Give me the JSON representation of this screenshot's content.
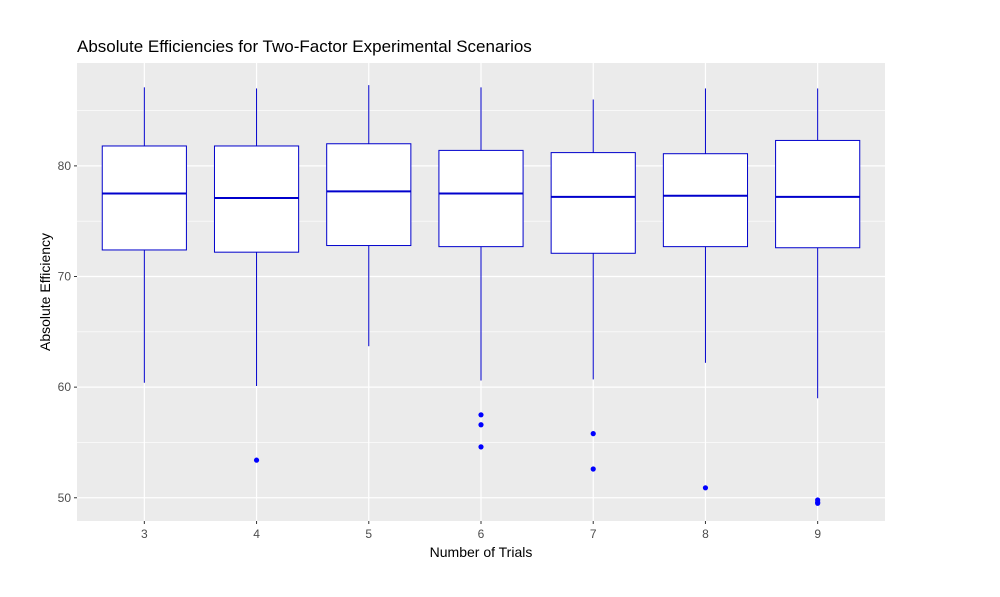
{
  "chart_data": {
    "type": "boxplot",
    "title": "Absolute Efficiencies for Two-Factor Experimental Scenarios",
    "xlabel": "Number of Trials",
    "ylabel": "Absolute Efficiency",
    "ylim": [
      47.9,
      89.3
    ],
    "y_ticks": [
      50,
      60,
      70,
      80
    ],
    "y_minor_ticks": [
      55,
      65,
      75,
      85
    ],
    "grid": true,
    "legend": "none",
    "colors": {
      "panel_background": "#ebebeb",
      "grid": "#ffffff",
      "box_line": "#0000cc",
      "median": "#0000cc",
      "outlier": "#0000ff",
      "tick_text": "#4d4d4d",
      "tick_mark": "#333333"
    },
    "categories": [
      "3",
      "4",
      "5",
      "6",
      "7",
      "8",
      "9"
    ],
    "boxes": [
      {
        "category": "3",
        "min": 60.4,
        "q1": 72.4,
        "median": 77.5,
        "q3": 81.8,
        "max": 87.1,
        "outliers": []
      },
      {
        "category": "4",
        "min": 60.1,
        "q1": 72.2,
        "median": 77.1,
        "q3": 81.8,
        "max": 87.0,
        "outliers": [
          53.4
        ]
      },
      {
        "category": "5",
        "min": 63.7,
        "q1": 72.8,
        "median": 77.7,
        "q3": 82.0,
        "max": 87.3,
        "outliers": []
      },
      {
        "category": "6",
        "min": 60.6,
        "q1": 72.7,
        "median": 77.5,
        "q3": 81.4,
        "max": 87.1,
        "outliers": [
          57.5,
          56.6,
          54.6
        ]
      },
      {
        "category": "7",
        "min": 60.7,
        "q1": 72.1,
        "median": 77.2,
        "q3": 81.2,
        "max": 86.0,
        "outliers": [
          55.8,
          52.6
        ]
      },
      {
        "category": "8",
        "min": 62.2,
        "q1": 72.7,
        "median": 77.3,
        "q3": 81.1,
        "max": 87.0,
        "outliers": [
          50.9
        ]
      },
      {
        "category": "9",
        "min": 59.0,
        "q1": 72.6,
        "median": 77.2,
        "q3": 82.3,
        "max": 87.0,
        "outliers": [
          49.8,
          49.6,
          49.5
        ]
      }
    ]
  }
}
